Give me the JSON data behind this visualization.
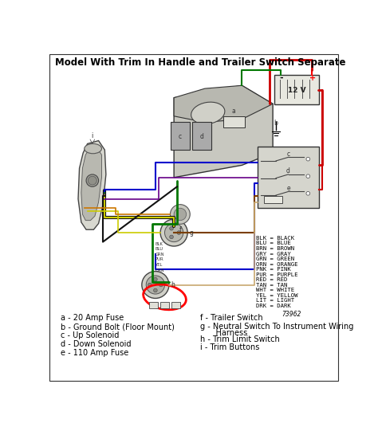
{
  "title": "Model With Trim In Handle and Trailer Switch Separate",
  "bg_color": "#f5f5f0",
  "border_color": "#000000",
  "legend_items": [
    "BLK = BLACK",
    "BLU = BLUE",
    "BRN = BROWN",
    "GRY = GRAY",
    "GRN = GREEN",
    "ORN = ORANGE",
    "PNK = PINK",
    "PUR = PURPLE",
    "RED = RED",
    "TAN = TAN",
    "WHT = WHITE",
    "YEL = YELLOW",
    "LIT = LIGHT",
    "DRK = DARK"
  ],
  "part_labels_left": [
    "a - 20 Amp Fuse",
    "b - Ground Bolt (Floor Mount)",
    "c - Up Solenoid",
    "d - Down Solenoid",
    "e - 110 Amp Fuse"
  ],
  "part_labels_right_line1": "f - Trailer Switch",
  "part_labels_right_line2": "g - Neutral Switch To Instrument Wiring",
  "part_labels_right_line2b": "    Harness",
  "part_labels_right_line3": "h - Trim Limit Switch",
  "part_labels_right_line4": "i - Trim Buttons",
  "diagram_number": "73962",
  "title_fontsize": 8.5,
  "label_fontsize": 7,
  "legend_fontsize": 5.2,
  "colors": {
    "red": "#cc0000",
    "blue": "#0000cc",
    "green": "#007700",
    "black": "#111111",
    "yellow": "#cccc00",
    "orange": "#cc7700",
    "purple": "#660088",
    "brown": "#7b3f00",
    "darkgreen": "#004400",
    "gray": "#888888",
    "tan": "#c8a870"
  }
}
